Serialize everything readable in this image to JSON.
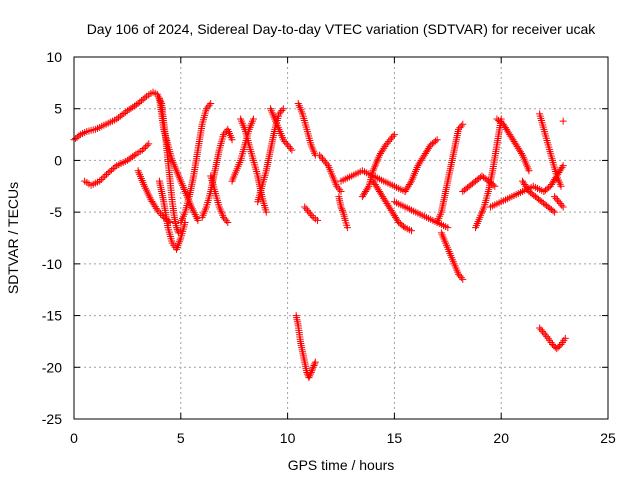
{
  "chart_data": {
    "type": "scatter",
    "title": "Day 106 of 2024, Sidereal Day-to-day VTEC variation (SDTVAR) for receiver ucak",
    "xlabel": "GPS time / hours",
    "ylabel": "SDTVAR / TECUs",
    "xlim": [
      0,
      25
    ],
    "ylim": [
      -25,
      10
    ],
    "xticks": [
      0,
      5,
      10,
      15,
      20,
      25
    ],
    "yticks": [
      -25,
      -20,
      -15,
      -10,
      -5,
      0,
      5,
      10
    ],
    "grid": true,
    "marker": "plus",
    "series": [
      {
        "name": "SDTVAR",
        "color": "#ff0000",
        "segments": [
          {
            "x": [
              0.0,
              0.3,
              0.6,
              1.0,
              1.5,
              2.0,
              2.5,
              3.0,
              3.4,
              3.7,
              3.9,
              4.1,
              4.3,
              4.5,
              4.6,
              4.7,
              4.8,
              4.9,
              5.0
            ],
            "y": [
              2.0,
              2.5,
              2.8,
              3.0,
              3.5,
              4.0,
              4.8,
              5.5,
              6.2,
              6.6,
              6.4,
              5.5,
              2.0,
              -2.0,
              -4.0,
              -5.5,
              -6.5,
              -7.0,
              -6.8
            ]
          },
          {
            "x": [
              0.5,
              0.8,
              1.2,
              1.6,
              2.0,
              2.5,
              2.9,
              3.2,
              3.5
            ],
            "y": [
              -2.0,
              -2.4,
              -2.0,
              -1.2,
              -0.5,
              0.0,
              0.6,
              1.0,
              1.6
            ]
          },
          {
            "x": [
              3.0,
              3.3,
              3.6,
              3.9,
              4.2,
              4.5
            ],
            "y": [
              -1.0,
              -2.5,
              -3.8,
              -4.8,
              -5.5,
              -6.0
            ]
          },
          {
            "x": [
              4.0,
              4.2,
              4.4,
              4.6,
              4.8,
              5.0,
              5.2
            ],
            "y": [
              -2.0,
              -4.0,
              -6.5,
              -8.0,
              -8.6,
              -7.5,
              -6.0
            ]
          },
          {
            "x": [
              4.0,
              4.1,
              4.2,
              4.4,
              4.6,
              4.9,
              5.2,
              5.5,
              5.8
            ],
            "y": [
              6.0,
              4.5,
              3.0,
              1.5,
              0.0,
              -1.5,
              -3.0,
              -4.5,
              -5.8
            ]
          },
          {
            "x": [
              5.0,
              5.2,
              5.4,
              5.6,
              5.8,
              6.0,
              6.2,
              6.4
            ],
            "y": [
              -6.0,
              -5.0,
              -3.5,
              -1.5,
              1.0,
              3.5,
              5.0,
              5.5
            ]
          },
          {
            "x": [
              6.0,
              6.2,
              6.4,
              6.6,
              6.8,
              7.0,
              7.2,
              7.4
            ],
            "y": [
              -5.5,
              -4.5,
              -3.0,
              -1.0,
              1.0,
              2.5,
              3.0,
              2.0
            ]
          },
          {
            "x": [
              6.4,
              6.6,
              6.8,
              7.0,
              7.2
            ],
            "y": [
              -1.5,
              -3.0,
              -4.5,
              -5.5,
              -6.0
            ]
          },
          {
            "x": [
              7.4,
              7.6,
              7.8,
              8.0,
              8.2,
              8.4
            ],
            "y": [
              -2.0,
              -1.0,
              0.0,
              1.5,
              3.0,
              4.0
            ]
          },
          {
            "x": [
              7.8,
              8.0,
              8.2,
              8.4,
              8.6,
              8.8,
              9.0
            ],
            "y": [
              4.0,
              3.0,
              1.5,
              0.0,
              -1.5,
              -3.5,
              -5.0
            ]
          },
          {
            "x": [
              8.6,
              8.8,
              9.0,
              9.2,
              9.4,
              9.6,
              9.8
            ],
            "y": [
              -4.0,
              -2.5,
              -1.0,
              1.0,
              3.0,
              4.5,
              5.0
            ]
          },
          {
            "x": [
              9.2,
              9.4,
              9.6,
              9.8,
              10.0,
              10.2
            ],
            "y": [
              5.0,
              4.0,
              3.0,
              2.0,
              1.5,
              1.0
            ]
          },
          {
            "x": [
              10.5,
              10.7,
              10.9,
              11.1,
              11.3
            ],
            "y": [
              5.5,
              4.5,
              3.0,
              1.5,
              0.5
            ]
          },
          {
            "x": [
              10.8,
              11.0,
              11.2,
              11.4
            ],
            "y": [
              -4.5,
              -5.0,
              -5.5,
              -5.8
            ]
          },
          {
            "x": [
              10.4,
              10.5,
              10.6,
              10.7,
              10.8,
              10.9,
              11.0,
              11.1,
              11.2,
              11.3
            ],
            "y": [
              -15.0,
              -16.0,
              -17.5,
              -18.5,
              -19.5,
              -20.5,
              -21.0,
              -20.5,
              -20.0,
              -19.5
            ]
          },
          {
            "x": [
              11.5,
              11.7,
              11.9,
              12.1,
              12.3,
              12.5
            ],
            "y": [
              0.5,
              0.0,
              -0.5,
              -1.5,
              -2.5,
              -3.0
            ]
          },
          {
            "x": [
              12.4,
              12.5,
              12.6,
              12.7,
              12.8
            ],
            "y": [
              -3.5,
              -4.5,
              -5.0,
              -5.8,
              -6.5
            ]
          },
          {
            "x": [
              12.5,
              13.0,
              13.5,
              14.0,
              14.5,
              15.0,
              15.5
            ],
            "y": [
              -2.0,
              -1.5,
              -1.0,
              -1.5,
              -2.0,
              -2.5,
              -3.0
            ]
          },
          {
            "x": [
              13.5,
              13.8,
              14.0,
              14.3,
              14.6,
              15.0
            ],
            "y": [
              -3.5,
              -2.5,
              -1.0,
              0.5,
              1.5,
              2.5
            ]
          },
          {
            "x": [
              14.0,
              14.3,
              14.6,
              14.9,
              15.2,
              15.5,
              15.8
            ],
            "y": [
              -2.0,
              -3.0,
              -4.0,
              -5.0,
              -6.0,
              -6.5,
              -6.8
            ]
          },
          {
            "x": [
              15.5,
              15.8,
              16.1,
              16.4,
              16.7,
              17.0
            ],
            "y": [
              -3.0,
              -2.0,
              -0.5,
              0.5,
              1.5,
              2.0
            ]
          },
          {
            "x": [
              15.0,
              15.5,
              16.0,
              16.5,
              17.0,
              17.5
            ],
            "y": [
              -4.0,
              -4.5,
              -5.0,
              -5.5,
              -6.0,
              -6.5
            ]
          },
          {
            "x": [
              17.0,
              17.2,
              17.4,
              17.6,
              17.8,
              18.0,
              18.2
            ],
            "y": [
              -6.0,
              -5.0,
              -3.0,
              -1.0,
              1.0,
              3.0,
              3.5
            ]
          },
          {
            "x": [
              17.2,
              17.4,
              17.6,
              17.8,
              18.0,
              18.2
            ],
            "y": [
              -7.0,
              -8.0,
              -9.0,
              -10.0,
              -11.0,
              -11.5
            ]
          },
          {
            "x": [
              18.2,
              18.5,
              18.8,
              19.1,
              19.4,
              19.7
            ],
            "y": [
              -3.0,
              -2.5,
              -2.0,
              -1.5,
              -2.0,
              -2.5
            ]
          },
          {
            "x": [
              18.8,
              19.0,
              19.2,
              19.4,
              19.6,
              19.8,
              20.0
            ],
            "y": [
              -6.5,
              -5.5,
              -4.5,
              -3.0,
              -1.0,
              1.5,
              4.0
            ]
          },
          {
            "x": [
              19.8,
              20.1,
              20.4,
              20.7,
              21.0,
              21.3
            ],
            "y": [
              4.0,
              3.5,
              2.5,
              1.5,
              0.5,
              -1.0
            ]
          },
          {
            "x": [
              19.5,
              20.0,
              20.5,
              21.0,
              21.5,
              22.0
            ],
            "y": [
              -4.5,
              -4.0,
              -3.5,
              -3.0,
              -2.5,
              -3.0
            ]
          },
          {
            "x": [
              21.0,
              21.3,
              21.6,
              21.9,
              22.2,
              22.5
            ],
            "y": [
              -2.0,
              -3.0,
              -3.5,
              -4.0,
              -4.5,
              -5.0
            ]
          },
          {
            "x": [
              21.8,
              22.0,
              22.2,
              22.4,
              22.6,
              22.8
            ],
            "y": [
              4.5,
              3.0,
              1.5,
              0.0,
              -1.5,
              -2.5
            ]
          },
          {
            "x": [
              22.0,
              22.3,
              22.6,
              22.9
            ],
            "y": [
              -3.0,
              -2.5,
              -1.5,
              -0.5
            ]
          },
          {
            "x": [
              22.5,
              22.7,
              22.9
            ],
            "y": [
              -3.5,
              -4.0,
              -4.5
            ]
          },
          {
            "x": [
              21.8,
              22.0,
              22.2,
              22.4,
              22.6,
              22.8,
              23.0
            ],
            "y": [
              -16.2,
              -16.7,
              -17.2,
              -17.8,
              -18.2,
              -17.8,
              -17.2
            ]
          },
          {
            "x": [
              22.9
            ],
            "y": [
              3.8
            ]
          }
        ]
      }
    ]
  }
}
